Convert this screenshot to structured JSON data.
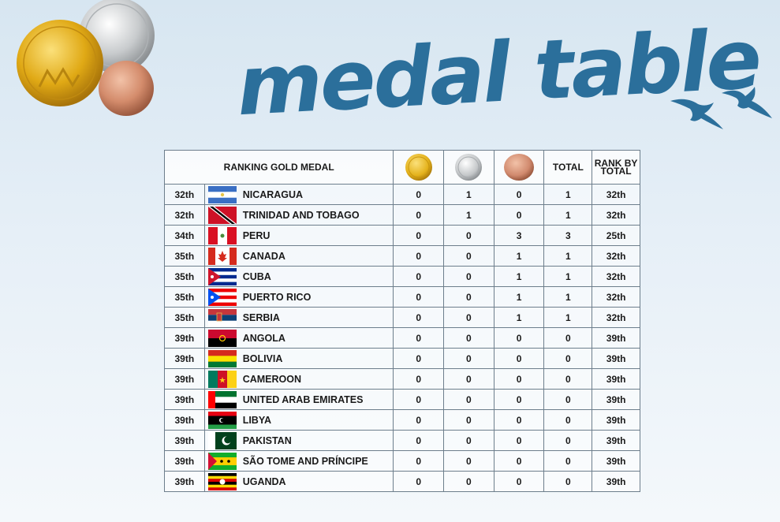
{
  "title": "medal table",
  "header": {
    "ranking": "RANKING GOLD MEDAL",
    "total": "TOTAL",
    "rank_by_total_line1": "RANK BY",
    "rank_by_total_line2": "TOTAL"
  },
  "colors": {
    "gold": "#e4b21c",
    "silver": "#bfc3c6",
    "bronze": "#d18a6e",
    "title": "#2b6f9b"
  },
  "rows": [
    {
      "rank": "32th",
      "country": "NICARAGUA",
      "flag": "nicaragua-flag",
      "gold": "0",
      "silver": "1",
      "bronze": "0",
      "total": "1",
      "rank_total": "32th"
    },
    {
      "rank": "32th",
      "country": "TRINIDAD AND TOBAGO",
      "flag": "trinidad-and-tobago-flag",
      "gold": "0",
      "silver": "1",
      "bronze": "0",
      "total": "1",
      "rank_total": "32th"
    },
    {
      "rank": "34th",
      "country": "PERU",
      "flag": "peru-flag",
      "gold": "0",
      "silver": "0",
      "bronze": "3",
      "total": "3",
      "rank_total": "25th"
    },
    {
      "rank": "35th",
      "country": "CANADA",
      "flag": "canada-flag",
      "gold": "0",
      "silver": "0",
      "bronze": "1",
      "total": "1",
      "rank_total": "32th"
    },
    {
      "rank": "35th",
      "country": "CUBA",
      "flag": "cuba-flag",
      "gold": "0",
      "silver": "0",
      "bronze": "1",
      "total": "1",
      "rank_total": "32th"
    },
    {
      "rank": "35th",
      "country": "PUERTO RICO",
      "flag": "puerto-rico-flag",
      "gold": "0",
      "silver": "0",
      "bronze": "1",
      "total": "1",
      "rank_total": "32th"
    },
    {
      "rank": "35th",
      "country": "SERBIA",
      "flag": "serbia-flag",
      "gold": "0",
      "silver": "0",
      "bronze": "1",
      "total": "1",
      "rank_total": "32th"
    },
    {
      "rank": "39th",
      "country": "ANGOLA",
      "flag": "angola-flag",
      "gold": "0",
      "silver": "0",
      "bronze": "0",
      "total": "0",
      "rank_total": "39th"
    },
    {
      "rank": "39th",
      "country": "BOLIVIA",
      "flag": "bolivia-flag",
      "gold": "0",
      "silver": "0",
      "bronze": "0",
      "total": "0",
      "rank_total": "39th"
    },
    {
      "rank": "39th",
      "country": "CAMEROON",
      "flag": "cameroon-flag",
      "gold": "0",
      "silver": "0",
      "bronze": "0",
      "total": "0",
      "rank_total": "39th"
    },
    {
      "rank": "39th",
      "country": "UNITED ARAB EMIRATES",
      "flag": "uae-flag",
      "gold": "0",
      "silver": "0",
      "bronze": "0",
      "total": "0",
      "rank_total": "39th"
    },
    {
      "rank": "39th",
      "country": "LIBYA",
      "flag": "libya-flag",
      "gold": "0",
      "silver": "0",
      "bronze": "0",
      "total": "0",
      "rank_total": "39th"
    },
    {
      "rank": "39th",
      "country": "PAKISTAN",
      "flag": "pakistan-flag",
      "gold": "0",
      "silver": "0",
      "bronze": "0",
      "total": "0",
      "rank_total": "39th"
    },
    {
      "rank": "39th",
      "country": "SÃO TOME AND PRÍNCIPE",
      "flag": "sao-tome-flag",
      "gold": "0",
      "silver": "0",
      "bronze": "0",
      "total": "0",
      "rank_total": "39th"
    },
    {
      "rank": "39th",
      "country": "UGANDA",
      "flag": "uganda-flag",
      "gold": "0",
      "silver": "0",
      "bronze": "0",
      "total": "0",
      "rank_total": "39th"
    }
  ]
}
